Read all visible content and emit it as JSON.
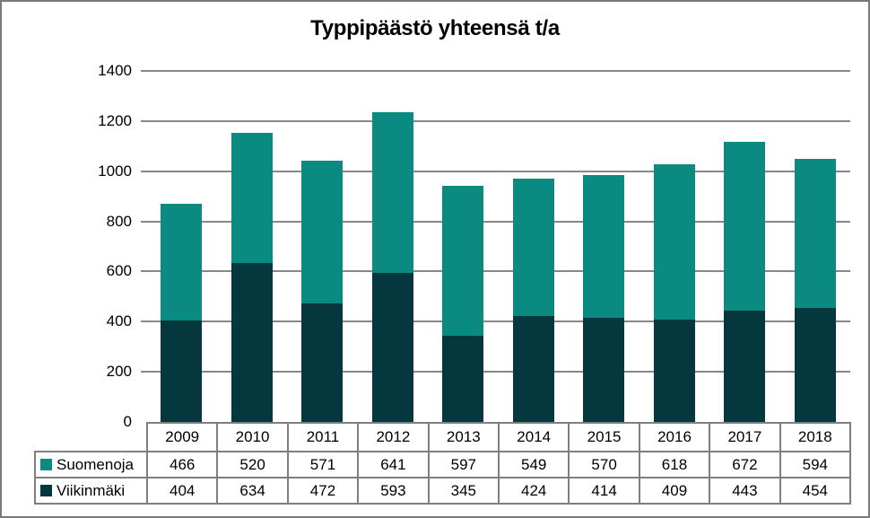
{
  "frame": {
    "background": "#ffffff",
    "border_color": "#7a7a7a"
  },
  "chart_data": {
    "type": "bar",
    "stacked": true,
    "title": "Typpipäästö yhteensä t/a",
    "categories": [
      "2009",
      "2010",
      "2011",
      "2012",
      "2013",
      "2014",
      "2015",
      "2016",
      "2017",
      "2018"
    ],
    "series": [
      {
        "name": "Suomenoja",
        "color": "#0a8a80",
        "values": [
          466,
          520,
          571,
          641,
          597,
          549,
          570,
          618,
          672,
          594
        ]
      },
      {
        "name": "Viikinmäki",
        "color": "#04383e",
        "values": [
          404,
          634,
          472,
          593,
          345,
          424,
          414,
          409,
          443,
          454
        ]
      }
    ],
    "stack_bottom_to_top": [
      "Viikinmäki",
      "Suomenoja"
    ],
    "ylim": [
      0,
      1400
    ],
    "yticks": [
      0,
      200,
      400,
      600,
      800,
      1000,
      1200,
      1400
    ],
    "xlabel": "",
    "ylabel": "",
    "grid": "horizontal-only",
    "gridline_color": "#878787",
    "table_border_color": "#7f7f7f",
    "legend_position": "table-left",
    "data_table_shown": true
  }
}
